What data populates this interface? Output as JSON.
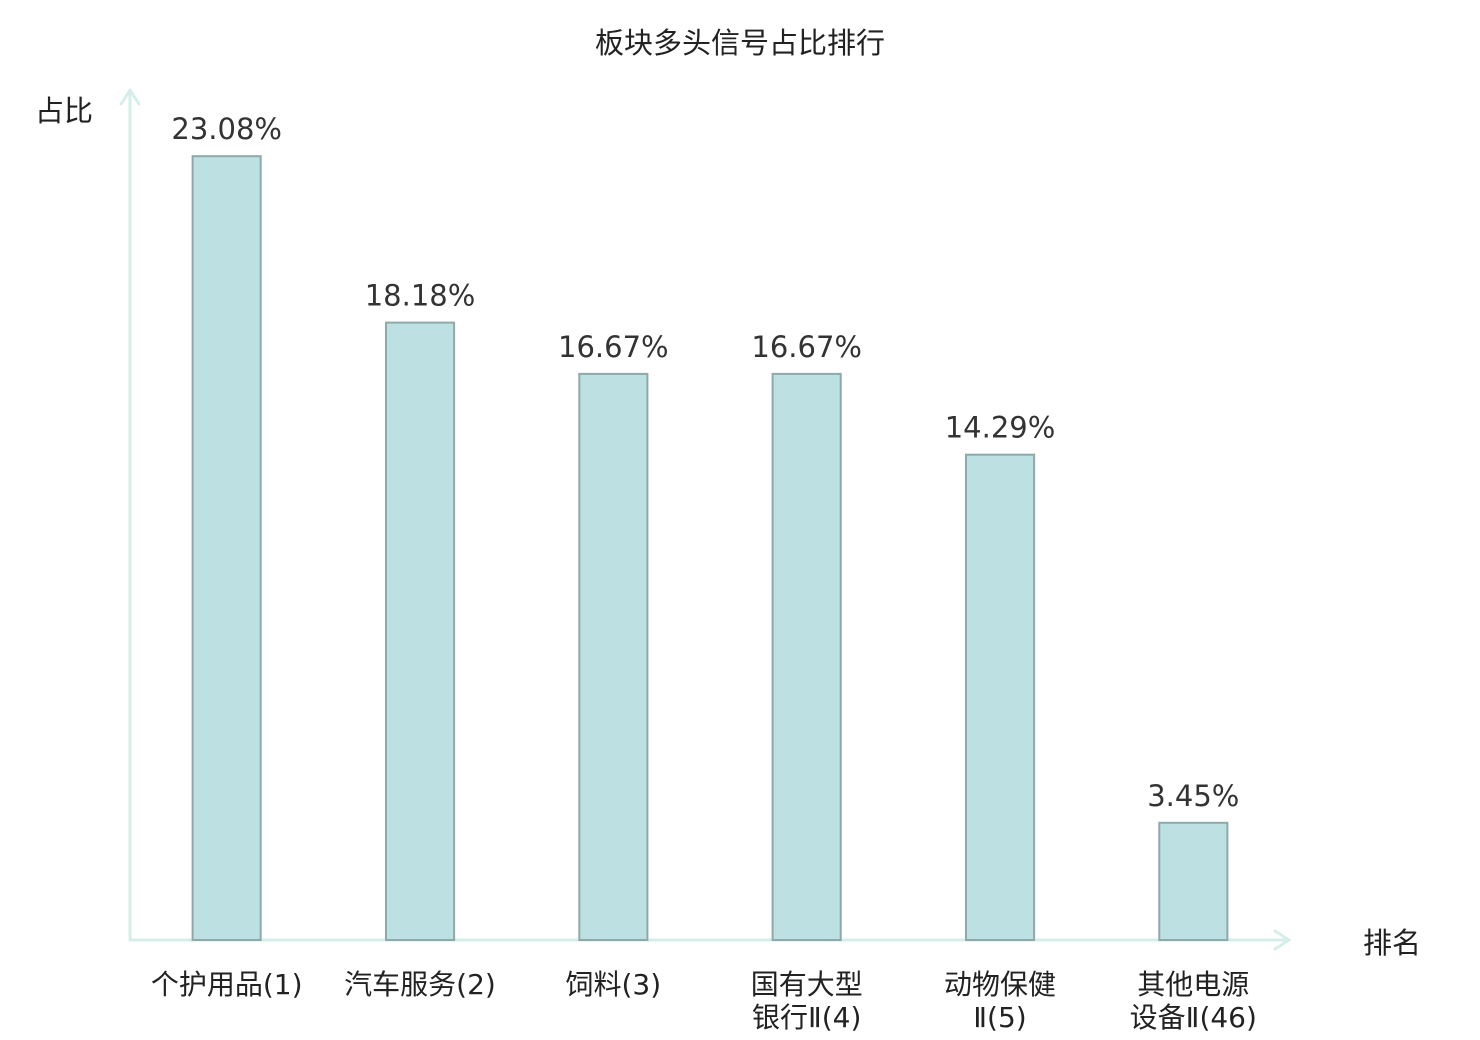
{
  "chart_data": {
    "type": "bar",
    "title": "板块多头信号占比排行",
    "xlabel": "排名",
    "ylabel": "占比",
    "categories": [
      "个护用品(1)",
      "汽车服务(2)",
      "饲料(3)",
      "国有大型银行Ⅱ(4)",
      "动物保健Ⅱ(5)",
      "其他电源设备Ⅱ(46)"
    ],
    "values": [
      23.08,
      18.18,
      16.67,
      16.67,
      14.29,
      3.45
    ],
    "value_labels": [
      "23.08%",
      "18.18%",
      "16.67%",
      "16.67%",
      "14.29%",
      "3.45%"
    ],
    "ylim": [
      0,
      25
    ],
    "grid": false,
    "category_label_colors": [
      "#222222",
      "#222222",
      "#222222",
      "#222222",
      "#222222",
      "#e3191c"
    ],
    "colors": {
      "bar_fill": "#bde0e2",
      "bar_stroke": "#8ea9aa",
      "axis": "#d6eee9",
      "value_label": "#333333",
      "text": "#222222"
    }
  }
}
